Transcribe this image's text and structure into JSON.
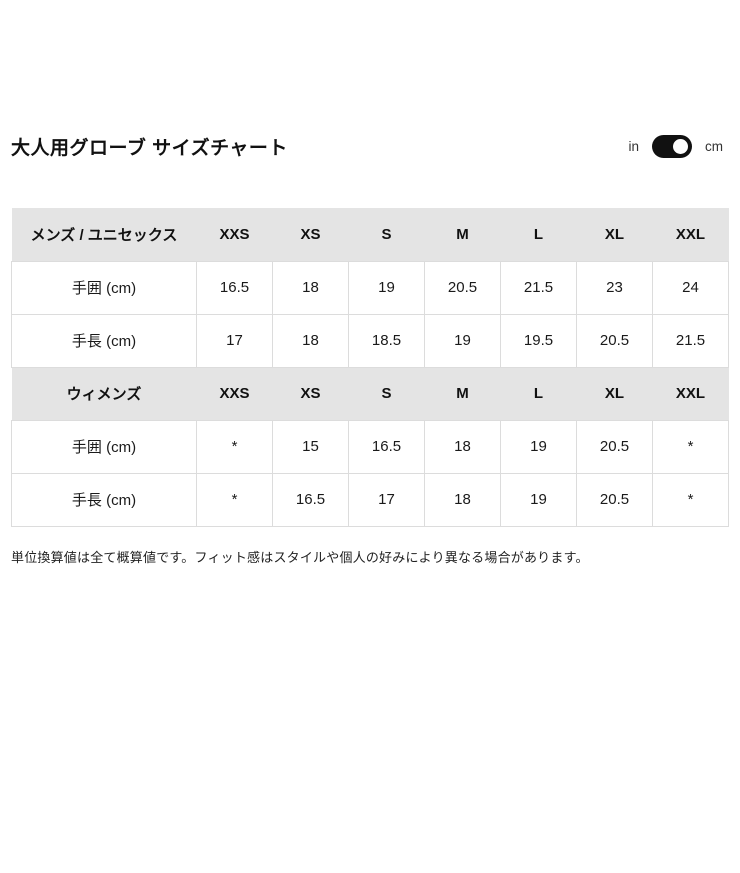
{
  "page": {
    "title": "大人用グローブ サイズチャート",
    "footnote": "単位換算値は全て概算値です。フィット感はスタイルや個人の好みにより異なる場合があります。"
  },
  "unit_toggle": {
    "left_label": "in",
    "right_label": "cm",
    "selected": "cm"
  },
  "table": {
    "sections": [
      {
        "header": {
          "label": "メンズ / ユニセックス",
          "sizes": [
            "XXS",
            "XS",
            "S",
            "M",
            "L",
            "XL",
            "XXL"
          ]
        },
        "rows": [
          {
            "label": "手囲 (cm)",
            "values": [
              "16.5",
              "18",
              "19",
              "20.5",
              "21.5",
              "23",
              "24"
            ]
          },
          {
            "label": "手長 (cm)",
            "values": [
              "17",
              "18",
              "18.5",
              "19",
              "19.5",
              "20.5",
              "21.5"
            ]
          }
        ]
      },
      {
        "header": {
          "label": "ウィメンズ",
          "sizes": [
            "XXS",
            "XS",
            "S",
            "M",
            "L",
            "XL",
            "XXL"
          ]
        },
        "rows": [
          {
            "label": "手囲 (cm)",
            "values": [
              "*",
              "15",
              "16.5",
              "18",
              "19",
              "20.5",
              "*"
            ]
          },
          {
            "label": "手長 (cm)",
            "values": [
              "*",
              "16.5",
              "17",
              "18",
              "19",
              "20.5",
              "*"
            ]
          }
        ]
      }
    ]
  },
  "colors": {
    "toggle": "#111111",
    "section_header_bg": "#e4e4e4",
    "cell_border": "#dcdcdc",
    "text": "#1a1a1a"
  }
}
